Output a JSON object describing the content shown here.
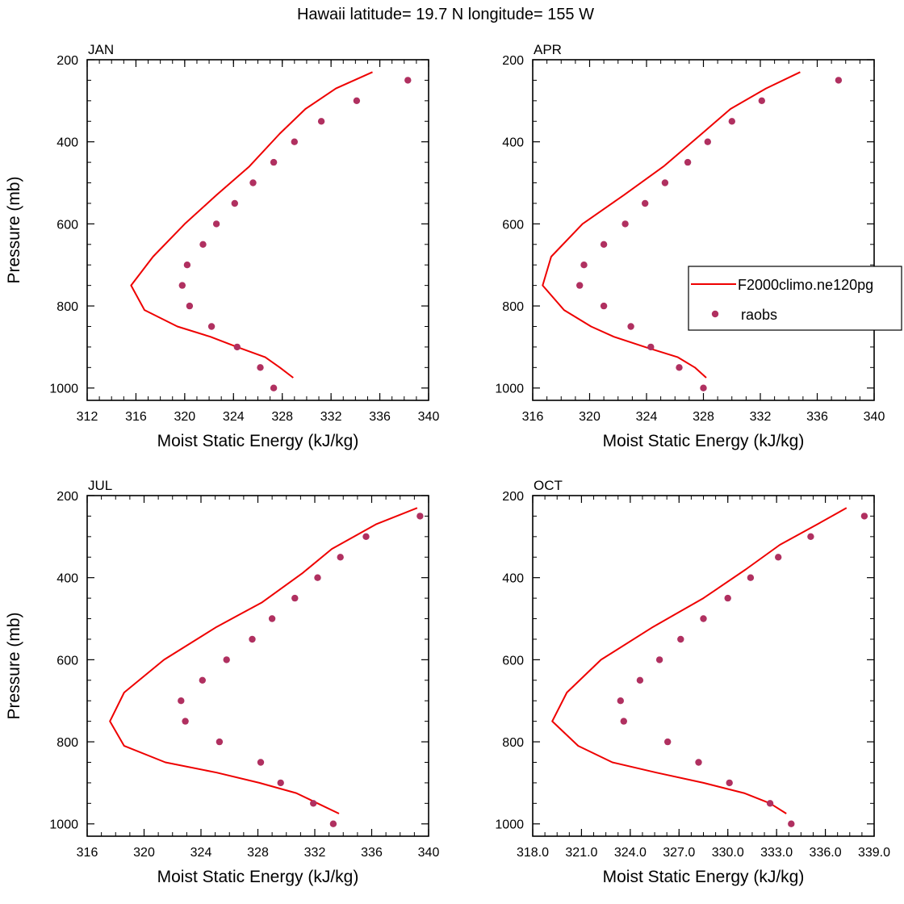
{
  "title": "Hawaii  latitude= 19.7 N longitude= 155 W",
  "colors": {
    "model": "#ee0000",
    "obs": "#b03060"
  },
  "legend": {
    "model_label": "F2000climo.ne120pg",
    "obs_label": "raobs",
    "placement": "right-center (over APR panel)"
  },
  "chart_data": [
    {
      "type": "line",
      "panel_label": "JAN",
      "xlabel": "Moist Static Energy (kJ/kg)",
      "ylabel": "Pressure (mb)",
      "xlim": [
        312,
        340
      ],
      "ylim": [
        1030,
        200
      ],
      "x_ticks": [
        312,
        316,
        320,
        324,
        328,
        332,
        336,
        340
      ],
      "x_tick_labels": [
        "312",
        "316",
        "320",
        "324",
        "328",
        "332",
        "336",
        "340"
      ],
      "y_ticks": [
        200,
        400,
        600,
        800,
        1000
      ],
      "y_tick_labels": [
        "200",
        "400",
        "600",
        "800",
        "1000"
      ],
      "series": [
        {
          "name": "F2000climo.ne120pg",
          "kind": "line",
          "x": [
            328.9,
            327.8,
            326.6,
            324.3,
            322.1,
            319.4,
            316.7,
            315.6,
            317.4,
            320.0,
            322.6,
            325.3,
            327.8,
            329.9,
            332.4,
            335.4
          ],
          "y": [
            975,
            950,
            925,
            900,
            875,
            850,
            810,
            750,
            680,
            600,
            530,
            460,
            380,
            320,
            270,
            230
          ]
        },
        {
          "name": "raobs",
          "kind": "scatter",
          "x": [
            327.3,
            326.2,
            324.3,
            322.2,
            320.4,
            319.8,
            320.2,
            321.5,
            322.6,
            324.1,
            325.6,
            327.3,
            329.0,
            331.2,
            334.1,
            338.3
          ],
          "y": [
            1000,
            950,
            900,
            850,
            800,
            750,
            700,
            650,
            600,
            550,
            500,
            450,
            400,
            350,
            300,
            250
          ]
        }
      ]
    },
    {
      "type": "line",
      "panel_label": "APR",
      "xlabel": "Moist Static Energy (kJ/kg)",
      "ylabel": "",
      "xlim": [
        316,
        340
      ],
      "ylim": [
        1030,
        200
      ],
      "x_ticks": [
        316,
        320,
        324,
        328,
        332,
        336,
        340
      ],
      "x_tick_labels": [
        "316",
        "320",
        "324",
        "328",
        "332",
        "336",
        "340"
      ],
      "y_ticks": [
        200,
        400,
        600,
        800,
        1000
      ],
      "y_tick_labels": [
        "200",
        "400",
        "600",
        "800",
        "1000"
      ],
      "series": [
        {
          "name": "F2000climo.ne120pg",
          "kind": "line",
          "x": [
            328.2,
            327.4,
            326.2,
            323.9,
            321.7,
            320.1,
            318.2,
            316.7,
            317.3,
            319.5,
            322.4,
            325.2,
            327.9,
            329.9,
            332.4,
            334.8
          ],
          "y": [
            975,
            950,
            925,
            900,
            875,
            850,
            810,
            750,
            680,
            600,
            530,
            460,
            380,
            320,
            270,
            230
          ]
        },
        {
          "name": "raobs",
          "kind": "scatter",
          "x": [
            328.0,
            326.3,
            324.3,
            322.9,
            321.0,
            319.3,
            319.6,
            321.0,
            322.5,
            323.9,
            325.3,
            326.9,
            328.3,
            330.0,
            332.1,
            337.5
          ],
          "y": [
            1000,
            950,
            900,
            850,
            800,
            750,
            700,
            650,
            600,
            550,
            500,
            450,
            400,
            350,
            300,
            250
          ]
        }
      ]
    },
    {
      "type": "line",
      "panel_label": "JUL",
      "xlabel": "Moist Static Energy (kJ/kg)",
      "ylabel": "Pressure (mb)",
      "xlim": [
        316,
        340
      ],
      "ylim": [
        1030,
        200
      ],
      "x_ticks": [
        316,
        320,
        324,
        328,
        332,
        336,
        340
      ],
      "x_tick_labels": [
        "316",
        "320",
        "324",
        "328",
        "332",
        "336",
        "340"
      ],
      "y_ticks": [
        200,
        400,
        600,
        800,
        1000
      ],
      "y_tick_labels": [
        "200",
        "400",
        "600",
        "800",
        "1000"
      ],
      "series": [
        {
          "name": "F2000climo.ne120pg",
          "kind": "line",
          "x": [
            333.7,
            332.2,
            330.7,
            328.1,
            325.1,
            321.5,
            318.6,
            317.6,
            318.6,
            321.4,
            325.1,
            328.3,
            331.1,
            333.2,
            336.3,
            339.2
          ],
          "y": [
            975,
            950,
            925,
            900,
            875,
            850,
            810,
            750,
            680,
            600,
            520,
            460,
            390,
            330,
            270,
            230
          ]
        },
        {
          "name": "raobs",
          "kind": "scatter",
          "x": [
            333.3,
            331.9,
            329.6,
            328.2,
            325.3,
            322.9,
            322.6,
            324.1,
            325.8,
            327.6,
            329.0,
            330.6,
            332.2,
            333.8,
            335.6,
            339.4
          ],
          "y": [
            1000,
            950,
            900,
            850,
            800,
            750,
            700,
            650,
            600,
            550,
            500,
            450,
            400,
            350,
            300,
            250
          ]
        }
      ]
    },
    {
      "type": "line",
      "panel_label": "OCT",
      "xlabel": "Moist Static Energy (kJ/kg)",
      "ylabel": "",
      "xlim": [
        318,
        339
      ],
      "ylim": [
        1030,
        200
      ],
      "x_ticks": [
        318,
        321,
        324,
        327,
        330,
        333,
        336,
        339
      ],
      "x_tick_labels": [
        "318.0",
        "321.0",
        "324.0",
        "327.0",
        "330.0",
        "333.0",
        "336.0",
        "339.0"
      ],
      "y_ticks": [
        200,
        400,
        600,
        800,
        1000
      ],
      "y_tick_labels": [
        "200",
        "400",
        "600",
        "800",
        "1000"
      ],
      "series": [
        {
          "name": "F2000climo.ne120pg",
          "kind": "line",
          "x": [
            333.6,
            332.6,
            331.0,
            328.5,
            325.6,
            322.9,
            320.8,
            319.2,
            320.1,
            322.2,
            325.4,
            328.5,
            331.1,
            333.2,
            335.5,
            337.3
          ],
          "y": [
            975,
            950,
            925,
            900,
            875,
            850,
            810,
            750,
            680,
            600,
            520,
            450,
            380,
            320,
            270,
            230
          ]
        },
        {
          "name": "raobs",
          "kind": "scatter",
          "x": [
            333.9,
            332.6,
            330.1,
            328.2,
            326.3,
            323.6,
            323.4,
            324.6,
            325.8,
            327.1,
            328.5,
            330.0,
            331.4,
            333.1,
            335.1,
            338.4
          ],
          "y": [
            1000,
            950,
            900,
            850,
            800,
            750,
            700,
            650,
            600,
            550,
            500,
            450,
            400,
            350,
            300,
            250
          ]
        }
      ]
    }
  ]
}
